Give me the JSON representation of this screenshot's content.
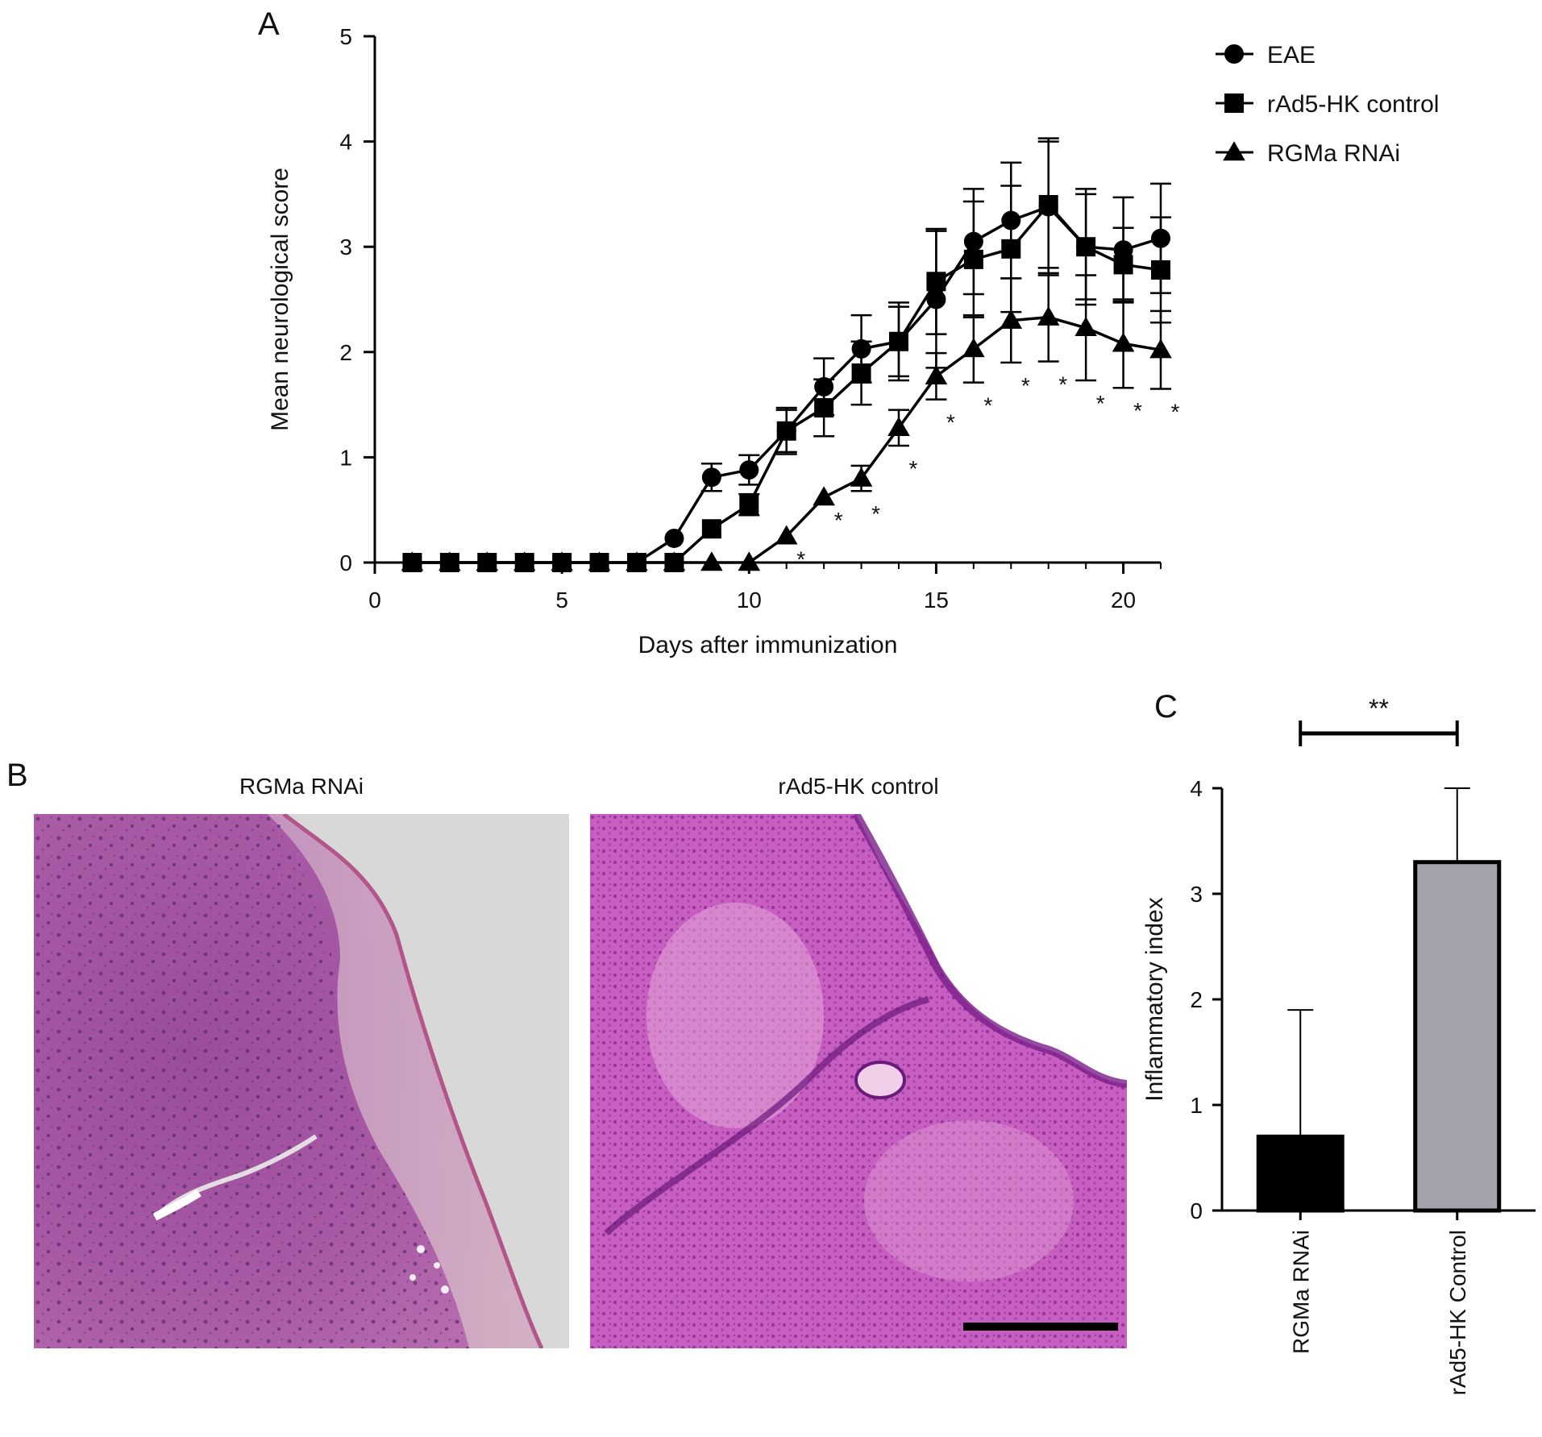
{
  "panels": {
    "a": {
      "letter": "A"
    },
    "b": {
      "letter": "B",
      "left_title": "RGMa RNAi",
      "right_title": "rAd5-HK control"
    },
    "c": {
      "letter": "C"
    }
  },
  "chart_data": [
    {
      "id": "panel-a",
      "type": "line",
      "xlabel": "Days after immunization",
      "ylabel": "Mean neurological score",
      "xlim": [
        0,
        21
      ],
      "ylim": [
        0,
        5
      ],
      "xticks": [
        0,
        5,
        10,
        15,
        20
      ],
      "yticks": [
        0,
        1,
        2,
        3,
        4,
        5
      ],
      "legend_position": "top-right",
      "x": [
        1,
        2,
        3,
        4,
        5,
        6,
        7,
        8,
        9,
        10,
        11,
        12,
        13,
        14,
        15,
        16,
        17,
        18,
        19,
        20,
        21
      ],
      "series": [
        {
          "name": "EAE",
          "marker": "circle",
          "values": [
            0,
            0,
            0,
            0,
            0,
            0,
            0,
            0.23,
            0.81,
            0.88,
            1.25,
            1.67,
            2.03,
            2.1,
            2.5,
            3.05,
            3.25,
            3.38,
            3.0,
            2.97,
            3.08
          ],
          "errors": [
            0,
            0,
            0,
            0,
            0,
            0,
            0,
            0,
            0.13,
            0.14,
            0.22,
            0.27,
            0.32,
            0.37,
            0.65,
            0.5,
            0.55,
            0.65,
            0.55,
            0.5,
            0.52
          ]
        },
        {
          "name": "rAd5-HK control",
          "marker": "square",
          "values": [
            0,
            0,
            0,
            0,
            0,
            0,
            0,
            0,
            0.32,
            0.55,
            1.25,
            1.47,
            1.8,
            2.1,
            2.67,
            2.88,
            2.98,
            3.4,
            3.0,
            2.83,
            2.78
          ],
          "errors": [
            0,
            0,
            0,
            0,
            0,
            0,
            0,
            0,
            0,
            0.1,
            0.2,
            0.27,
            0.3,
            0.33,
            0.5,
            0.55,
            0.6,
            0.6,
            0.5,
            0.35,
            0.5
          ]
        },
        {
          "name": "RGMa RNAi",
          "marker": "triangle",
          "values": [
            0,
            0,
            0,
            0,
            0,
            0,
            0,
            0,
            0,
            0,
            0.25,
            0.62,
            0.8,
            1.28,
            1.77,
            2.03,
            2.3,
            2.33,
            2.23,
            2.08,
            2.02
          ],
          "errors": [
            0,
            0,
            0,
            0,
            0,
            0,
            0,
            0,
            0,
            0,
            0,
            0,
            0.12,
            0.17,
            0.22,
            0.32,
            0.4,
            0.42,
            0.5,
            0.42,
            0.37
          ]
        }
      ],
      "significance": [
        {
          "x": 11,
          "label": "*"
        },
        {
          "x": 12,
          "label": "*"
        },
        {
          "x": 13,
          "label": "*"
        },
        {
          "x": 14,
          "label": "*"
        },
        {
          "x": 15,
          "label": "*"
        },
        {
          "x": 16,
          "label": "*"
        },
        {
          "x": 17,
          "label": "*"
        },
        {
          "x": 18,
          "label": "*"
        },
        {
          "x": 19,
          "label": "*"
        },
        {
          "x": 20,
          "label": "*"
        },
        {
          "x": 21,
          "label": "*"
        }
      ]
    },
    {
      "id": "panel-c",
      "type": "bar",
      "categories": [
        "RGMa RNAi",
        "rAd5-HK Control"
      ],
      "values": [
        0.7,
        3.3
      ],
      "errors": [
        1.2,
        0.7
      ],
      "colors": [
        "#000000",
        "#a3a3ab"
      ],
      "ylabel": "Inflammatory index",
      "ylim": [
        0,
        4
      ],
      "yticks": [
        0,
        1,
        2,
        3,
        4
      ],
      "significance_label": "**"
    }
  ]
}
